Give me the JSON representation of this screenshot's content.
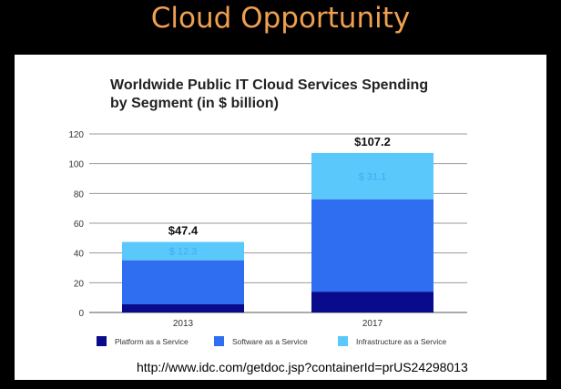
{
  "slide": {
    "title": "Cloud Opportunity",
    "source_url": "http://www.idc.com/getdoc.jsp?containerId=prUS24298013"
  },
  "colors": {
    "background": "#000000",
    "title": "#f0a050",
    "platform": "#0a0a8c",
    "software": "#2f6ef0",
    "infrastructure": "#5ac8fa"
  },
  "chart_data": {
    "type": "bar",
    "stacked": true,
    "title_line1": "Worldwide Public IT Cloud Services Spending",
    "title_line2": "by Segment (in $ billion)",
    "categories": [
      "2013",
      "2017"
    ],
    "series": [
      {
        "name": "Platform as a Service",
        "values": [
          5.5,
          14.0
        ],
        "color": "#0a0a8c"
      },
      {
        "name": "Software as a Service",
        "values": [
          29.6,
          62.1
        ],
        "color": "#2f6ef0"
      },
      {
        "name": "Infrastructure as a Service",
        "values": [
          12.3,
          31.1
        ],
        "color": "#5ac8fa"
      }
    ],
    "totals": [
      "$47.4",
      "$107.2"
    ],
    "segment_labels": [
      {
        "category": 0,
        "series": 2,
        "text": "$ 12.3"
      },
      {
        "category": 1,
        "series": 2,
        "text": "$ 31.1"
      }
    ],
    "ylim": [
      0,
      120
    ],
    "yticks": [
      0,
      20,
      40,
      60,
      80,
      100,
      120
    ],
    "grid": true,
    "legend_position": "bottom"
  }
}
